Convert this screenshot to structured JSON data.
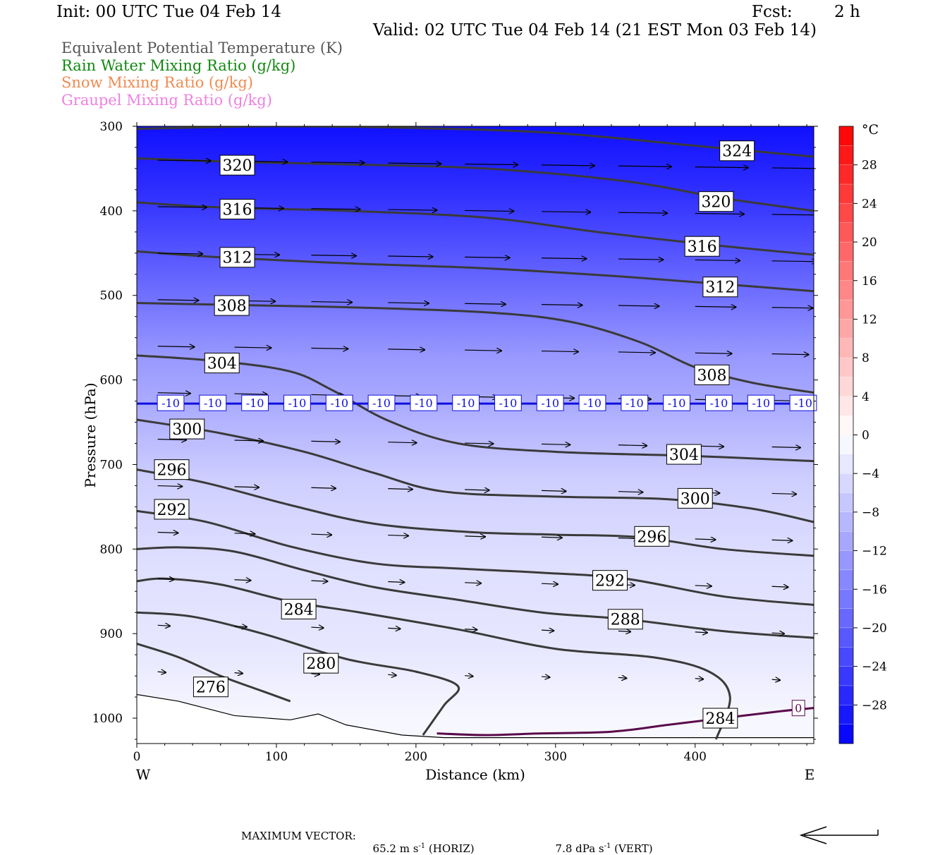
{
  "header": {
    "init": "Init: 00 UTC Tue 04 Feb 14",
    "fcst_label": "Fcst:",
    "fcst_value": "2 h",
    "valid": "Valid: 02 UTC Tue 04 Feb 14 (21 EST Mon 03 Feb 14)"
  },
  "legend": [
    {
      "text": "Equivalent Potential Temperature (K)",
      "color": "#555555"
    },
    {
      "text": "Rain Water Mixing Ratio (g/kg)",
      "color": "#118811"
    },
    {
      "text": "Snow Mixing Ratio (g/kg)",
      "color": "#f08a50"
    },
    {
      "text": "Graupel Mixing Ratio (g/kg)",
      "color": "#f080e0"
    }
  ],
  "footer": {
    "max_vector_label": "MAXIMUM VECTOR:",
    "horiz_value": "65.2 m s",
    "horiz_sup": "-1",
    "horiz_unit": " (HORIZ)",
    "vert_value": "7.8 dPa s",
    "vert_sup": "-1",
    "vert_unit": " (VERT)"
  },
  "chart_data": {
    "type": "cross-section",
    "xlabel": "Distance (km)",
    "ylabel": "Pressure (hPa)",
    "xlim": [
      0,
      485
    ],
    "ylim": [
      1030,
      300
    ],
    "x_ticks": [
      0,
      100,
      200,
      300,
      400
    ],
    "y_ticks": [
      300,
      400,
      500,
      600,
      700,
      800,
      900,
      1000
    ],
    "x_end_labels": {
      "left": "W",
      "right": "E"
    },
    "colorbar": {
      "unit": "°C",
      "tick_values": [
        28,
        24,
        20,
        16,
        12,
        8,
        4,
        0,
        -4,
        -8,
        -12,
        -16,
        -20,
        -24,
        -28
      ],
      "range": [
        -32,
        32
      ],
      "step": 2
    },
    "temperature_fill_levels": [
      {
        "p": 300,
        "t": -30
      },
      {
        "p": 380,
        "t": -26
      },
      {
        "p": 440,
        "t": -22
      },
      {
        "p": 500,
        "t": -18
      },
      {
        "p": 570,
        "t": -13
      },
      {
        "p": 640,
        "t": -10
      },
      {
        "p": 720,
        "t": -6
      },
      {
        "p": 820,
        "t": -4
      },
      {
        "p": 920,
        "t": -3
      },
      {
        "p": 1000,
        "t": -1
      }
    ],
    "theta_e_contours": [
      {
        "value": 324,
        "points": [
          [
            0,
            303
          ],
          [
            100,
            300
          ],
          [
            200,
            302
          ],
          [
            300,
            308
          ],
          [
            400,
            323
          ],
          [
            485,
            336
          ]
        ],
        "label_at": [
          430,
          329
        ]
      },
      {
        "value": 320,
        "points": [
          [
            0,
            338
          ],
          [
            70,
            342
          ],
          [
            150,
            345
          ],
          [
            250,
            350
          ],
          [
            350,
            365
          ],
          [
            420,
            385
          ],
          [
            485,
            400
          ]
        ],
        "label_at": [
          415,
          389
        ],
        "label2_at": [
          72,
          346
        ]
      },
      {
        "value": 316,
        "points": [
          [
            0,
            390
          ],
          [
            60,
            396
          ],
          [
            150,
            400
          ],
          [
            250,
            408
          ],
          [
            330,
            425
          ],
          [
            410,
            440
          ],
          [
            485,
            452
          ]
        ],
        "label_at": [
          405,
          442
        ],
        "label2_at": [
          72,
          398
        ]
      },
      {
        "value": 312,
        "points": [
          [
            0,
            448
          ],
          [
            60,
            455
          ],
          [
            150,
            462
          ],
          [
            250,
            468
          ],
          [
            350,
            478
          ],
          [
            430,
            488
          ],
          [
            485,
            495
          ]
        ],
        "label_at": [
          418,
          490
        ],
        "label2_at": [
          72,
          455
        ]
      },
      {
        "value": 308,
        "points": [
          [
            0,
            509
          ],
          [
            60,
            511
          ],
          [
            150,
            514
          ],
          [
            250,
            520
          ],
          [
            310,
            531
          ],
          [
            360,
            555
          ],
          [
            400,
            585
          ],
          [
            440,
            603
          ],
          [
            485,
            615
          ]
        ],
        "label_at": [
          412,
          594
        ],
        "label2_at": [
          68,
          512
        ]
      },
      {
        "value": 304,
        "points": [
          [
            0,
            571
          ],
          [
            60,
            578
          ],
          [
            110,
            590
          ],
          [
            140,
            612
          ],
          [
            180,
            648
          ],
          [
            230,
            675
          ],
          [
            300,
            685
          ],
          [
            400,
            690
          ],
          [
            485,
            696
          ]
        ],
        "label_at": [
          392,
          688
        ],
        "label2_at": [
          61,
          580
        ]
      },
      {
        "value": 300,
        "points": [
          [
            0,
            647
          ],
          [
            60,
            663
          ],
          [
            120,
            685
          ],
          [
            170,
            710
          ],
          [
            220,
            732
          ],
          [
            300,
            738
          ],
          [
            380,
            741
          ],
          [
            440,
            752
          ],
          [
            485,
            768
          ]
        ],
        "label_at": [
          400,
          740
        ],
        "label2_at": [
          36,
          658
        ]
      },
      {
        "value": 296,
        "points": [
          [
            0,
            706
          ],
          [
            50,
            722
          ],
          [
            110,
            748
          ],
          [
            170,
            770
          ],
          [
            240,
            780
          ],
          [
            300,
            783
          ],
          [
            360,
            786
          ],
          [
            420,
            800
          ],
          [
            485,
            808
          ]
        ],
        "label_at": [
          369,
          785
        ],
        "label2_at": [
          25,
          706
        ]
      },
      {
        "value": 292,
        "points": [
          [
            0,
            755
          ],
          [
            50,
            768
          ],
          [
            110,
            797
          ],
          [
            170,
            817
          ],
          [
            230,
            823
          ],
          [
            290,
            828
          ],
          [
            350,
            835
          ],
          [
            420,
            856
          ],
          [
            485,
            866
          ]
        ],
        "label_at": [
          339,
          837
        ],
        "label2_at": [
          25,
          753
        ]
      },
      {
        "value": 288,
        "points": [
          [
            0,
            800
          ],
          [
            30,
            798
          ],
          [
            70,
            803
          ],
          [
            120,
            825
          ],
          [
            170,
            845
          ],
          [
            230,
            860
          ],
          [
            290,
            875
          ],
          [
            350,
            883
          ],
          [
            420,
            897
          ],
          [
            485,
            905
          ]
        ],
        "label_at": [
          350,
          883
        ]
      },
      {
        "value": 284,
        "points": [
          [
            0,
            838
          ],
          [
            20,
            835
          ],
          [
            60,
            842
          ],
          [
            110,
            862
          ],
          [
            160,
            875
          ],
          [
            230,
            895
          ],
          [
            300,
            918
          ],
          [
            370,
            928
          ],
          [
            410,
            945
          ],
          [
            425,
            975
          ],
          [
            415,
            1025
          ]
        ],
        "label_at": [
          418,
          1000
        ],
        "label2_at": [
          116,
          871
        ]
      },
      {
        "value": 280,
        "points": [
          [
            0,
            875
          ],
          [
            40,
            880
          ],
          [
            90,
            900
          ],
          [
            150,
            930
          ],
          [
            200,
            945
          ],
          [
            230,
            962
          ],
          [
            220,
            985
          ],
          [
            205,
            1020
          ]
        ],
        "label_at": [
          132,
          935
        ]
      },
      {
        "value": 276,
        "points": [
          [
            0,
            912
          ],
          [
            30,
            928
          ],
          [
            60,
            950
          ],
          [
            90,
            968
          ],
          [
            110,
            980
          ]
        ],
        "label_at": [
          53,
          963
        ]
      }
    ],
    "temperature_contour": {
      "value": -10,
      "pressure": 628,
      "label_count": 16
    },
    "zero_contour": {
      "value": 0,
      "points": [
        [
          215,
          1018
        ],
        [
          250,
          1020
        ],
        [
          290,
          1018
        ],
        [
          340,
          1016
        ],
        [
          380,
          1008
        ],
        [
          420,
          1000
        ],
        [
          460,
          992
        ],
        [
          485,
          988
        ]
      ],
      "label_at": [
        474,
        988
      ]
    },
    "terrain": [
      [
        0,
        972
      ],
      [
        30,
        980
      ],
      [
        70,
        997
      ],
      [
        110,
        1002
      ],
      [
        130,
        995
      ],
      [
        150,
        1008
      ],
      [
        190,
        1020
      ],
      [
        220,
        1023
      ],
      [
        485,
        1023
      ]
    ]
  }
}
